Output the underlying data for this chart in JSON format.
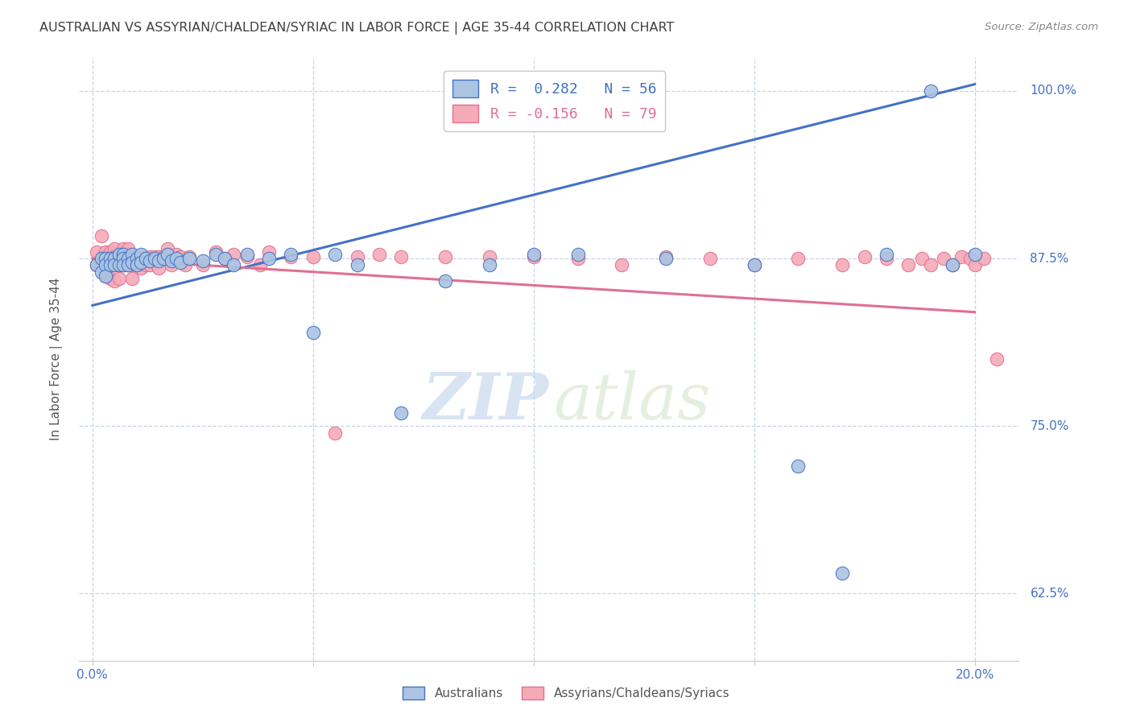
{
  "title": "AUSTRALIAN VS ASSYRIAN/CHALDEAN/SYRIAC IN LABOR FORCE | AGE 35-44 CORRELATION CHART",
  "source": "Source: ZipAtlas.com",
  "ylabel": "In Labor Force | Age 35-44",
  "y_min": 0.575,
  "y_max": 1.025,
  "x_min": -0.003,
  "x_max": 0.21,
  "blue_color": "#aac4e2",
  "pink_color": "#f5aab8",
  "blue_line_color": "#4472c4",
  "pink_line_color": "#e07090",
  "title_color": "#404040",
  "axis_label_color": "#4472c4",
  "background_color": "#ffffff",
  "grid_color": "#c8d4e8",
  "aus_x": [
    0.001,
    0.002,
    0.002,
    0.003,
    0.003,
    0.003,
    0.004,
    0.004,
    0.005,
    0.005,
    0.006,
    0.006,
    0.007,
    0.007,
    0.007,
    0.008,
    0.008,
    0.009,
    0.009,
    0.01,
    0.01,
    0.011,
    0.011,
    0.012,
    0.013,
    0.014,
    0.015,
    0.016,
    0.017,
    0.018,
    0.019,
    0.02,
    0.022,
    0.025,
    0.028,
    0.03,
    0.032,
    0.035,
    0.04,
    0.045,
    0.05,
    0.055,
    0.06,
    0.07,
    0.08,
    0.09,
    0.1,
    0.11,
    0.13,
    0.15,
    0.16,
    0.17,
    0.18,
    0.19,
    0.195,
    0.2
  ],
  "aus_y": [
    0.87,
    0.875,
    0.865,
    0.875,
    0.87,
    0.862,
    0.875,
    0.87,
    0.875,
    0.87,
    0.878,
    0.87,
    0.878,
    0.875,
    0.87,
    0.875,
    0.87,
    0.878,
    0.872,
    0.875,
    0.87,
    0.878,
    0.872,
    0.875,
    0.873,
    0.875,
    0.873,
    0.875,
    0.878,
    0.873,
    0.875,
    0.872,
    0.875,
    0.873,
    0.878,
    0.875,
    0.87,
    0.878,
    0.875,
    0.878,
    0.82,
    0.878,
    0.87,
    0.76,
    0.858,
    0.87,
    0.878,
    0.878,
    0.875,
    0.87,
    0.72,
    0.64,
    0.878,
    1.0,
    0.87,
    0.878
  ],
  "acs_x": [
    0.001,
    0.001,
    0.002,
    0.002,
    0.003,
    0.003,
    0.003,
    0.004,
    0.004,
    0.004,
    0.005,
    0.005,
    0.005,
    0.005,
    0.006,
    0.006,
    0.006,
    0.007,
    0.007,
    0.007,
    0.008,
    0.008,
    0.008,
    0.009,
    0.009,
    0.009,
    0.01,
    0.01,
    0.011,
    0.011,
    0.012,
    0.012,
    0.013,
    0.013,
    0.014,
    0.015,
    0.015,
    0.016,
    0.017,
    0.018,
    0.019,
    0.02,
    0.021,
    0.022,
    0.025,
    0.028,
    0.03,
    0.032,
    0.035,
    0.038,
    0.04,
    0.045,
    0.05,
    0.055,
    0.06,
    0.065,
    0.07,
    0.08,
    0.09,
    0.1,
    0.11,
    0.12,
    0.13,
    0.14,
    0.15,
    0.16,
    0.17,
    0.175,
    0.18,
    0.185,
    0.188,
    0.19,
    0.193,
    0.195,
    0.197,
    0.199,
    0.2,
    0.202,
    0.205
  ],
  "acs_y": [
    0.88,
    0.87,
    0.892,
    0.87,
    0.88,
    0.875,
    0.862,
    0.88,
    0.87,
    0.86,
    0.882,
    0.876,
    0.87,
    0.858,
    0.876,
    0.87,
    0.86,
    0.882,
    0.875,
    0.87,
    0.882,
    0.876,
    0.87,
    0.876,
    0.87,
    0.86,
    0.875,
    0.87,
    0.876,
    0.868,
    0.875,
    0.87,
    0.876,
    0.87,
    0.876,
    0.876,
    0.868,
    0.876,
    0.882,
    0.87,
    0.878,
    0.876,
    0.87,
    0.876,
    0.87,
    0.88,
    0.875,
    0.878,
    0.876,
    0.87,
    0.88,
    0.876,
    0.876,
    0.745,
    0.876,
    0.878,
    0.876,
    0.876,
    0.876,
    0.876,
    0.875,
    0.87,
    0.876,
    0.875,
    0.87,
    0.875,
    0.87,
    0.876,
    0.875,
    0.87,
    0.875,
    0.87,
    0.875,
    0.87,
    0.876,
    0.875,
    0.87,
    0.875,
    0.8
  ],
  "blue_line_x": [
    0.0,
    0.2
  ],
  "blue_line_y": [
    0.84,
    1.005
  ],
  "pink_line_x": [
    0.0,
    0.2
  ],
  "pink_line_y": [
    0.875,
    0.835
  ]
}
